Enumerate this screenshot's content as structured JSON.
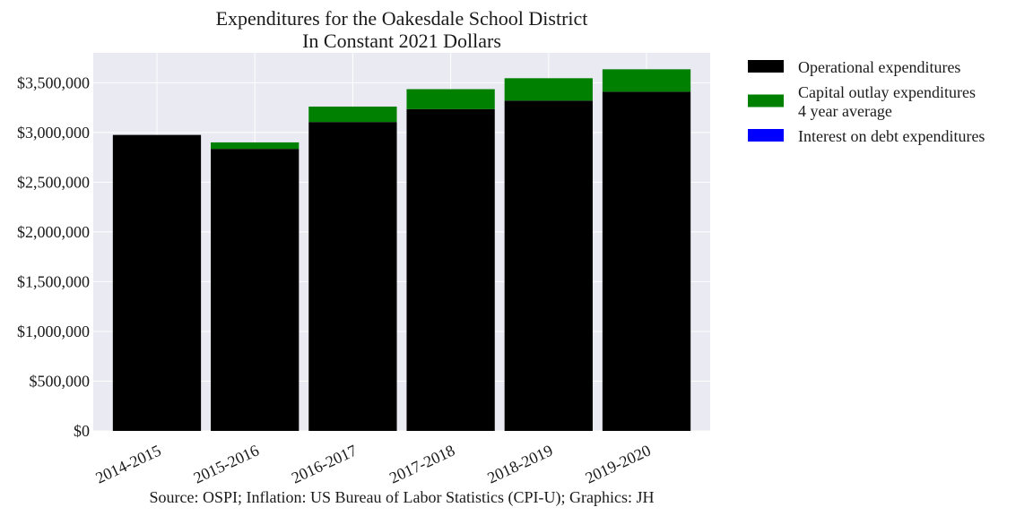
{
  "chart_data": {
    "type": "bar",
    "stacked": true,
    "title": [
      "Expenditures for the Oakesdale School District",
      "In Constant 2021 Dollars"
    ],
    "xlabel": "",
    "ylabel": "",
    "categories": [
      "2014-2015",
      "2015-2016",
      "2016-2017",
      "2017-2018",
      "2018-2019",
      "2019-2020"
    ],
    "series": [
      {
        "name": "Operational expenditures",
        "color": "#000000",
        "values": [
          2975000,
          2835000,
          3105000,
          3235000,
          3320000,
          3410000
        ]
      },
      {
        "name": "Capital outlay expenditures\n4 year average",
        "color": "#008000",
        "values": [
          0,
          65000,
          155000,
          200000,
          225000,
          225000
        ]
      },
      {
        "name": "Interest on debt expenditures",
        "color": "#0000ff",
        "values": [
          0,
          0,
          0,
          0,
          0,
          0
        ]
      }
    ],
    "ylim": [
      0,
      3800000
    ],
    "yticks": [
      0,
      500000,
      1000000,
      1500000,
      2000000,
      2500000,
      3000000,
      3500000
    ],
    "ytick_labels": [
      "$0",
      "$500,000",
      "$1,000,000",
      "$1,500,000",
      "$2,000,000",
      "$2,500,000",
      "$3,000,000",
      "$3,500,000"
    ],
    "grid": true,
    "legend_placement": "outside-right",
    "source": "Source: OSPI; Inflation: US Bureau of Labor Statistics (CPI-U); Graphics: JH"
  },
  "colors": {
    "plot_background": "#eaeaf2",
    "grid": "#ffffff"
  }
}
